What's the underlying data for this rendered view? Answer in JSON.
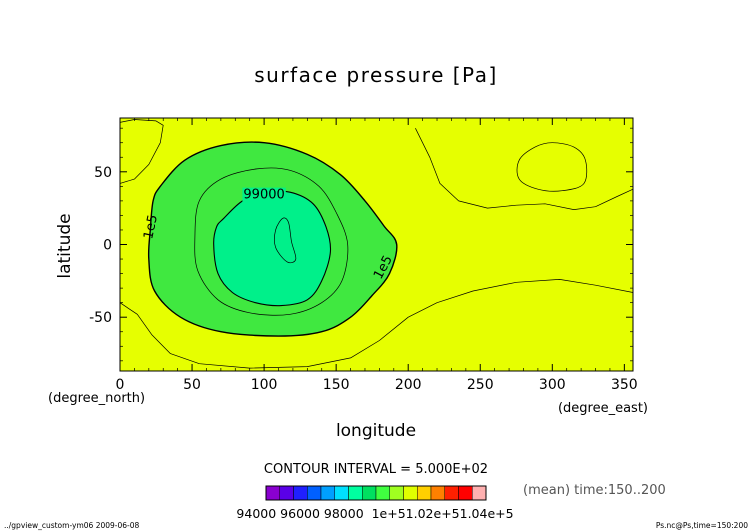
{
  "chart_data": {
    "type": "heatmap",
    "title": "surface pressure [Pa]",
    "xlabel": "longitude",
    "ylabel": "latitude",
    "x_unit": "(degree_east)",
    "y_unit": "(degree_north)",
    "xlim": [
      0,
      356
    ],
    "ylim": [
      -87,
      87
    ],
    "x_ticks": [
      0,
      50,
      100,
      150,
      200,
      250,
      300,
      350
    ],
    "y_ticks": [
      50,
      0,
      -50
    ],
    "contour_interval_label": "CONTOUR INTERVAL = 5.000E+02",
    "time_label": "(mean) time:150..200",
    "background_value_range": [
      100000,
      100500
    ],
    "contours": [
      {
        "level": 99000,
        "label": "99000",
        "label_at": [
          100,
          35
        ],
        "points": [
          [
            72,
            18
          ],
          [
            85,
            30
          ],
          [
            100,
            36
          ],
          [
            118,
            36
          ],
          [
            134,
            28
          ],
          [
            143,
            12
          ],
          [
            146,
            -5
          ],
          [
            140,
            -25
          ],
          [
            130,
            -38
          ],
          [
            112,
            -42
          ],
          [
            94,
            -40
          ],
          [
            78,
            -33
          ],
          [
            68,
            -20
          ],
          [
            65,
            0
          ],
          [
            67,
            12
          ]
        ]
      },
      {
        "level": 99500,
        "label": "",
        "points": [
          [
            55,
            30
          ],
          [
            70,
            45
          ],
          [
            95,
            52
          ],
          [
            118,
            51
          ],
          [
            138,
            40
          ],
          [
            150,
            22
          ],
          [
            158,
            0
          ],
          [
            154,
            -25
          ],
          [
            140,
            -40
          ],
          [
            118,
            -48
          ],
          [
            90,
            -47
          ],
          [
            68,
            -38
          ],
          [
            54,
            -18
          ],
          [
            52,
            5
          ]
        ]
      },
      {
        "level": 100000,
        "label": "1e5",
        "label_at": [
          24,
          15
        ],
        "points": [
          [
            28,
            40
          ],
          [
            45,
            58
          ],
          [
            70,
            68
          ],
          [
            100,
            70
          ],
          [
            130,
            62
          ],
          [
            153,
            48
          ],
          [
            170,
            30
          ],
          [
            183,
            13
          ],
          [
            192,
            0
          ],
          [
            187,
            -20
          ],
          [
            175,
            -35
          ],
          [
            160,
            -50
          ],
          [
            140,
            -60
          ],
          [
            110,
            -63
          ],
          [
            70,
            -60
          ],
          [
            42,
            -50
          ],
          [
            24,
            -32
          ],
          [
            20,
            -10
          ],
          [
            21,
            10
          ],
          [
            23,
            30
          ]
        ]
      },
      {
        "level": 100500,
        "label": "",
        "points": [
          [
            300,
            70
          ],
          [
            288,
            67
          ],
          [
            277,
            58
          ],
          [
            277,
            45
          ],
          [
            290,
            38
          ],
          [
            307,
            37
          ],
          [
            322,
            42
          ],
          [
            323,
            58
          ],
          [
            315,
            67
          ]
        ]
      },
      {
        "level": 100500,
        "label": "",
        "points": [
          [
            113,
            18
          ],
          [
            108,
            10
          ],
          [
            108,
            -2
          ],
          [
            116,
            -12
          ],
          [
            122,
            -10
          ],
          [
            119,
            2
          ],
          [
            117,
            15
          ]
        ]
      }
    ],
    "colorbar": {
      "levels": [
        "94000",
        "96000",
        "98000",
        "1e+5",
        "1.02e+5",
        "1.04e+5"
      ],
      "level_labels_as_printed": "94000 96000 98000  1e+51.02e+51.04e+5",
      "colors": [
        "#8a00d0",
        "#5a00e8",
        "#2020ff",
        "#0060ff",
        "#00a0ff",
        "#00e0ff",
        "#00ffa0",
        "#00e060",
        "#40ff40",
        "#a0ff20",
        "#e0ff00",
        "#ffd000",
        "#ff8000",
        "#ff2000",
        "#ff0000",
        "#ffb0b0"
      ]
    },
    "fill_colors": {
      "background": "#e6ff00",
      "ring": "#40e840",
      "inner": "#00f08a"
    }
  },
  "footer": {
    "left": "../gpview_custom-ym06  2009-06-08",
    "right": "Ps.nc@Ps,time=150:200"
  }
}
